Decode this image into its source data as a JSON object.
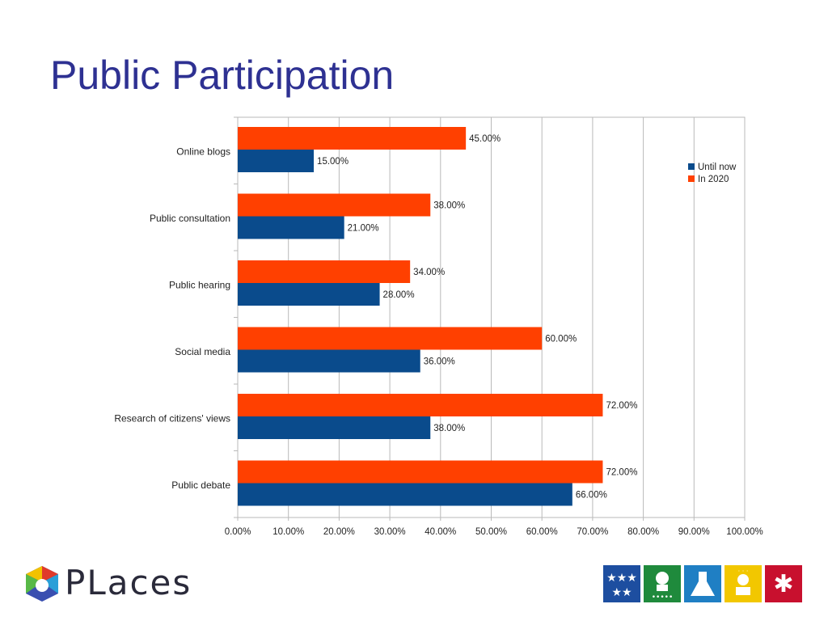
{
  "title": "Public Participation",
  "colors": {
    "until_now": "#0a4b8c",
    "in_2020": "#ff4000",
    "title": "#2e3192",
    "grid": "#b9b9b9"
  },
  "chart_data": {
    "type": "bar",
    "orientation": "horizontal",
    "categories": [
      "Online blogs",
      "Public consultation",
      "Public hearing",
      "Social media",
      "Research of citizens' views",
      "Public debate"
    ],
    "series": [
      {
        "name": "Until now",
        "values": [
          15,
          21,
          28,
          36,
          38,
          66
        ],
        "labels": [
          "15.00%",
          "21.00%",
          "28.00%",
          "36.00%",
          "38.00%",
          "66.00%"
        ],
        "color": "#0a4b8c"
      },
      {
        "name": "In 2020",
        "values": [
          45,
          38,
          34,
          60,
          72,
          72
        ],
        "labels": [
          "45.00%",
          "38.00%",
          "34.00%",
          "60.00%",
          "72.00%",
          "72.00%"
        ],
        "color": "#ff4000"
      }
    ],
    "xlim": [
      0,
      100
    ],
    "x_ticks": [
      "0.00%",
      "10.00%",
      "20.00%",
      "30.00%",
      "40.00%",
      "50.00%",
      "60.00%",
      "70.00%",
      "80.00%",
      "90.00%",
      "100.00%"
    ],
    "grid": true,
    "legend_position": "right"
  },
  "footer": {
    "logo_text": "PLaces",
    "logo_icon": "places-logo-icon",
    "icons": [
      {
        "name": "stars-icon",
        "color": "#1d4ea0"
      },
      {
        "name": "person-icon",
        "color": "#1f8a3c"
      },
      {
        "name": "flask-icon",
        "color": "#1f7fc4"
      },
      {
        "name": "sun-person-icon",
        "color": "#f2c700"
      },
      {
        "name": "asterisk-icon",
        "color": "#c8102e"
      }
    ]
  }
}
